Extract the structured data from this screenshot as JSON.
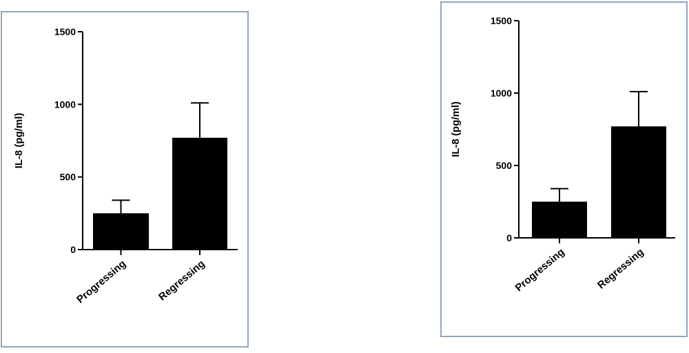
{
  "chart_data": [
    {
      "type": "bar",
      "y_label": "IL-8 (pg/ml)",
      "categories": [
        "Progressing",
        "Regressing"
      ],
      "values": [
        250,
        770
      ],
      "errors": [
        90,
        240
      ],
      "color": "#000000",
      "ylim": [
        0,
        1500
      ],
      "yticks": [
        0,
        500,
        1000,
        1500
      ]
    },
    {
      "type": "bar",
      "y_label": "IL-8 (pg/ml)",
      "categories": [
        "Progressing",
        "Regressing"
      ],
      "values": [
        250,
        770
      ],
      "errors": [
        90,
        240
      ],
      "color": "#000000",
      "ylim": [
        0,
        1500
      ],
      "yticks": [
        0,
        500,
        1000,
        1500
      ]
    }
  ]
}
